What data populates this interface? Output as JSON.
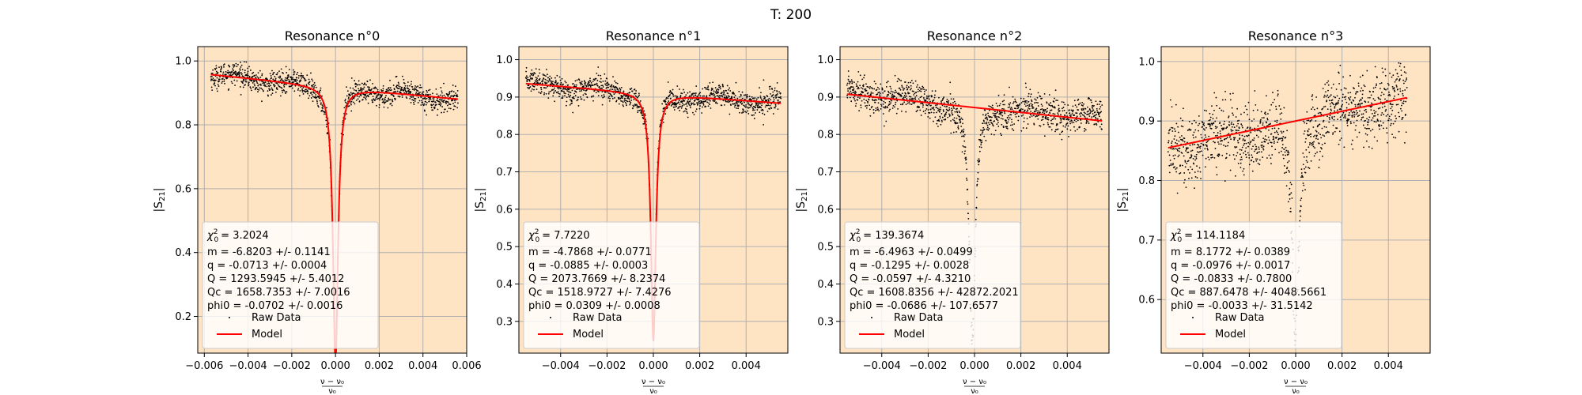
{
  "figure": {
    "suptitle": "T: 200"
  },
  "chart_data": [
    {
      "type": "scatter",
      "title": "Resonance n°0",
      "xlabel": "(ν − ν₀) / ν₀",
      "ylabel": "|S21|",
      "xlim": [
        -0.0063,
        0.006
      ],
      "ylim": [
        0.085,
        1.045
      ],
      "xticks": [
        -0.006,
        -0.004,
        -0.002,
        0.0,
        0.002,
        0.004,
        0.006
      ],
      "xtick_labels": [
        "−0.006",
        "−0.004",
        "−0.002",
        "0.000",
        "0.002",
        "0.004",
        "0.006"
      ],
      "yticks": [
        0.2,
        0.4,
        0.6,
        0.8,
        1.0
      ],
      "ytick_labels": [
        "0.2",
        "0.4",
        "0.6",
        "0.8",
        "1.0"
      ],
      "grid": true,
      "facecolor": "#ffe4c4",
      "legend_placement": "lower-left",
      "model": {
        "slope": -6.8203,
        "intercept": 0.919,
        "depth": 0.86,
        "fwhm": 0.00028
      },
      "data_range": [
        -0.0057,
        0.0056
      ],
      "noise_sigma": 0.018,
      "raw_points": 1200,
      "annotations": {
        "chi2": "= 3.2024",
        "m": "m = -6.8203 +/- 0.1141",
        "q": "q = -0.0713 +/- 0.0004",
        "Q": "Q = 1293.5945 +/- 5.4012",
        "Qc": "Qc = 1658.7353 +/- 7.0016",
        "phi0": "phi0 = -0.0702 +/- 0.0016"
      },
      "series": [
        {
          "name": "Raw Data",
          "color": "#000000"
        },
        {
          "name": "Model",
          "color": "#ff0000"
        }
      ]
    },
    {
      "type": "scatter",
      "title": "Resonance n°1",
      "xlabel": "(ν − ν₀) / ν₀",
      "ylabel": "|S21|",
      "xlim": [
        -0.0058,
        0.0058
      ],
      "ylim": [
        0.215,
        1.035
      ],
      "xticks": [
        -0.004,
        -0.002,
        0.0,
        0.002,
        0.004
      ],
      "xtick_labels": [
        "−0.004",
        "−0.002",
        "0.000",
        "0.002",
        "0.004"
      ],
      "yticks": [
        0.3,
        0.4,
        0.5,
        0.6,
        0.7,
        0.8,
        0.9,
        1.0
      ],
      "ytick_labels": [
        "0.3",
        "0.4",
        "0.5",
        "0.6",
        "0.7",
        "0.8",
        "0.9",
        "1.0"
      ],
      "grid": true,
      "facecolor": "#ffe4c4",
      "legend_placement": "lower-left",
      "model": {
        "slope": -4.7868,
        "intercept": 0.91,
        "depth": 0.66,
        "fwhm": 0.00026
      },
      "data_range": [
        -0.0055,
        0.0055
      ],
      "noise_sigma": 0.016,
      "raw_points": 1200,
      "annotations": {
        "chi2": "= 7.7220",
        "m": "m = -4.7868 +/- 0.0771",
        "q": "q = -0.0885 +/- 0.0003",
        "Q": "Q = 2073.7669 +/- 8.2374",
        "Qc": "Qc = 1518.9727 +/- 7.4276",
        "phi0": "phi0 = 0.0309 +/- 0.0008"
      },
      "series": [
        {
          "name": "Raw Data",
          "color": "#000000"
        },
        {
          "name": "Model",
          "color": "#ff0000"
        }
      ]
    },
    {
      "type": "scatter",
      "title": "Resonance n°2",
      "xlabel": "(ν − ν₀) / ν₀",
      "ylabel": "|S21|",
      "xlim": [
        -0.0058,
        0.0058
      ],
      "ylim": [
        0.215,
        1.035
      ],
      "xticks": [
        -0.004,
        -0.002,
        0.0,
        0.002,
        0.004
      ],
      "xtick_labels": [
        "−0.004",
        "−0.002",
        "0.000",
        "0.002",
        "0.004"
      ],
      "yticks": [
        0.3,
        0.4,
        0.5,
        0.6,
        0.7,
        0.8,
        0.9,
        1.0
      ],
      "ytick_labels": [
        "0.3",
        "0.4",
        "0.5",
        "0.6",
        "0.7",
        "0.8",
        "0.9",
        "1.0"
      ],
      "grid": true,
      "facecolor": "#ffe4c4",
      "legend_placement": "lower-left",
      "model": {
        "slope": -6.4963,
        "intercept": 0.872,
        "depth": 0.0,
        "fwhm": 0.0003
      },
      "data_profile": {
        "base_slope": -6.4963,
        "base_intercept": 0.88,
        "depth": 0.64,
        "fwhm": 0.00032,
        "center": -0.0001
      },
      "data_range": [
        -0.0055,
        0.0055
      ],
      "noise_sigma": 0.022,
      "raw_points": 1200,
      "annotations": {
        "chi2": "= 139.3674",
        "m": "m = -6.4963 +/- 0.0499",
        "q": "q = -0.1295 +/- 0.0028",
        "Q": "Q = -0.0597 +/- 4.3210",
        "Qc": "Qc = 1608.8356 +/- 42872.2021",
        "phi0": "phi0 = -0.0686 +/- 107.6577"
      },
      "series": [
        {
          "name": "Raw Data",
          "color": "#000000"
        },
        {
          "name": "Model",
          "color": "#ff0000"
        }
      ]
    },
    {
      "type": "scatter",
      "title": "Resonance n°3",
      "xlabel": "(ν − ν₀) / ν₀",
      "ylabel": "|S21|",
      "xlim": [
        -0.0058,
        0.0058
      ],
      "ylim": [
        0.51,
        1.025
      ],
      "xticks": [
        -0.004,
        -0.002,
        0.0,
        0.002,
        0.004
      ],
      "xtick_labels": [
        "−0.004",
        "−0.002",
        "0.000",
        "0.002",
        "0.004"
      ],
      "yticks": [
        0.6,
        0.7,
        0.8,
        0.9,
        1.0
      ],
      "ytick_labels": [
        "0.6",
        "0.7",
        "0.8",
        "0.9",
        "1.0"
      ],
      "grid": true,
      "facecolor": "#ffe4c4",
      "legend_placement": "lower-left",
      "model": {
        "slope": 8.1772,
        "intercept": 0.9,
        "depth": 0.0,
        "fwhm": 0.0003
      },
      "data_profile": {
        "base_slope": 8.1772,
        "base_intercept": 0.9,
        "depth": 0.35,
        "fwhm": 0.00035,
        "center": 0.0
      },
      "data_range": [
        -0.0055,
        0.0048
      ],
      "noise_sigma": 0.03,
      "raw_points": 1200,
      "annotations": {
        "chi2": "= 114.1184",
        "m": "m = 8.1772 +/- 0.0389",
        "q": "q = -0.0976 +/- 0.0017",
        "Q": "Q = -0.0833 +/- 0.7800",
        "Qc": "Qc = 887.6478 +/- 4048.5661",
        "phi0": "phi0 = -0.0033 +/- 31.5142"
      },
      "series": [
        {
          "name": "Raw Data",
          "color": "#000000"
        },
        {
          "name": "Model",
          "color": "#ff0000"
        }
      ]
    }
  ]
}
